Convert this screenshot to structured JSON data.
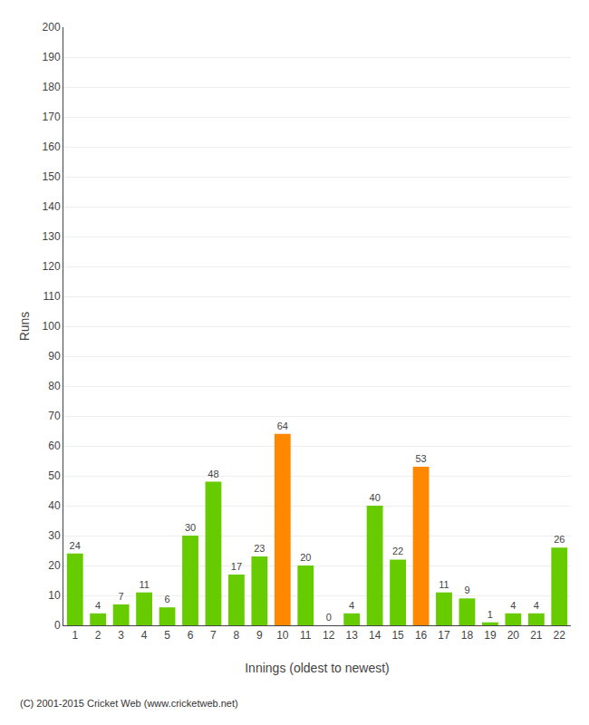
{
  "chart_data": {
    "type": "bar",
    "xlabel": "Innings (oldest to newest)",
    "ylabel": "Runs",
    "categories": [
      "1",
      "2",
      "3",
      "4",
      "5",
      "6",
      "7",
      "8",
      "9",
      "10",
      "11",
      "12",
      "13",
      "14",
      "15",
      "16",
      "17",
      "18",
      "19",
      "20",
      "21",
      "22"
    ],
    "values": [
      24,
      4,
      7,
      11,
      6,
      30,
      48,
      17,
      23,
      64,
      20,
      0,
      4,
      40,
      22,
      53,
      11,
      9,
      1,
      4,
      4,
      26
    ],
    "colors": [
      "#66cc00",
      "#66cc00",
      "#66cc00",
      "#66cc00",
      "#66cc00",
      "#66cc00",
      "#66cc00",
      "#66cc00",
      "#66cc00",
      "#ff8800",
      "#66cc00",
      "#66cc00",
      "#66cc00",
      "#66cc00",
      "#66cc00",
      "#ff8800",
      "#66cc00",
      "#66cc00",
      "#66cc00",
      "#66cc00",
      "#66cc00",
      "#66cc00"
    ],
    "ylim": [
      0,
      200
    ],
    "yticks": [
      0,
      10,
      20,
      30,
      40,
      50,
      60,
      70,
      80,
      90,
      100,
      110,
      120,
      130,
      140,
      150,
      160,
      170,
      180,
      190,
      200
    ],
    "grid": true,
    "data_labels": true,
    "annotations": [
      "(C) 2001-2015 Cricket Web (www.cricketweb.net)"
    ]
  }
}
